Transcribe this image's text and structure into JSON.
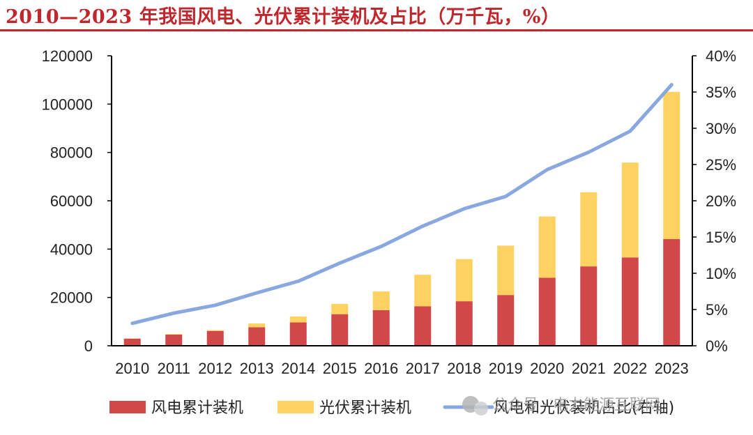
{
  "title": "2010—2023 年我国风电、光伏累计装机及占比（万千瓦，%）",
  "colors": {
    "wind": "#d1474a",
    "solar": "#fdd261",
    "line": "#8aa8e0",
    "title": "#c0272d"
  },
  "watermark": "公众号 · 电力能源互联网",
  "chart_data": {
    "type": "bar",
    "stacked": true,
    "title": "2010—2023 年我国风电、光伏累计装机及占比（万千瓦，%）",
    "categories": [
      "2010",
      "2011",
      "2012",
      "2013",
      "2014",
      "2015",
      "2016",
      "2017",
      "2018",
      "2019",
      "2020",
      "2021",
      "2022",
      "2023"
    ],
    "series": [
      {
        "name": "风电累计装机",
        "type": "bar",
        "axis": "left",
        "values": [
          2958,
          4623,
          6142,
          7652,
          9657,
          13075,
          14747,
          16367,
          18426,
          21005,
          28153,
          32848,
          36544,
          44134
        ]
      },
      {
        "name": "光伏累计装机",
        "type": "bar",
        "axis": "left",
        "values": [
          86,
          222,
          341,
          1589,
          2486,
          4218,
          7742,
          13025,
          17446,
          20418,
          25343,
          30656,
          39261,
          60949
        ]
      },
      {
        "name": "风电和光伏装机占比(右轴)",
        "type": "line",
        "axis": "right",
        "values": [
          3.1,
          4.5,
          5.6,
          7.3,
          8.9,
          11.4,
          13.7,
          16.5,
          18.9,
          20.6,
          24.3,
          26.7,
          29.6,
          36.0
        ]
      }
    ],
    "y_left": {
      "ylim": [
        0,
        120000
      ],
      "ticks": [
        "0",
        "20000",
        "40000",
        "60000",
        "80000",
        "100000",
        "120000"
      ]
    },
    "y_right": {
      "ylim": [
        0,
        40
      ],
      "ticks": [
        "0%",
        "5%",
        "10%",
        "15%",
        "20%",
        "25%",
        "30%",
        "35%",
        "40%"
      ]
    },
    "legend": [
      "风电累计装机",
      "光伏累计装机",
      "风电和光伏装机占比(右轴)"
    ],
    "legend_position": "bottom"
  }
}
